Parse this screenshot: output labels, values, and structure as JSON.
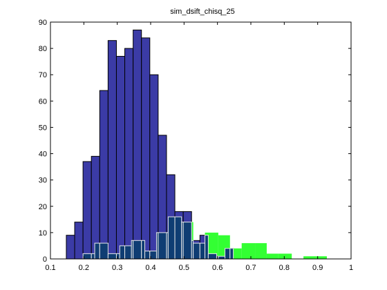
{
  "chart_data": {
    "type": "bar",
    "title": "sim_dsift_chisq_25",
    "xlabel": "",
    "ylabel": "",
    "xlim": [
      0.1,
      1.0
    ],
    "ylim": [
      0,
      90
    ],
    "x_ticks": [
      "0.1",
      "0.2",
      "0.3",
      "0.4",
      "0.5",
      "0.6",
      "0.7",
      "0.8",
      "0.9",
      "1"
    ],
    "y_ticks": [
      "0",
      "10",
      "20",
      "30",
      "40",
      "50",
      "60",
      "70",
      "80",
      "90"
    ],
    "grid": false,
    "bin_width": 0.025,
    "colors": {
      "series_a_fill": "#3b3ba6",
      "series_a_edge": "#000000",
      "series_b_fill": "#33ff33",
      "overlap_fill": "#0f3d73",
      "overlap_edge": "#e8e8e8"
    },
    "series": [
      {
        "bins": [
          [
            0.1475,
            0.1725,
            9
          ],
          [
            0.1725,
            0.1975,
            14
          ],
          [
            0.1975,
            0.2225,
            37
          ],
          [
            0.2225,
            0.2475,
            39
          ],
          [
            0.2475,
            0.2725,
            64
          ],
          [
            0.2725,
            0.2975,
            83
          ],
          [
            0.2975,
            0.3225,
            77
          ],
          [
            0.3225,
            0.3475,
            80
          ],
          [
            0.3475,
            0.3725,
            87
          ],
          [
            0.3725,
            0.3975,
            84
          ],
          [
            0.3975,
            0.4225,
            70
          ],
          [
            0.4225,
            0.4475,
            47
          ],
          [
            0.4475,
            0.4725,
            32
          ],
          [
            0.4725,
            0.4975,
            18
          ],
          [
            0.4975,
            0.5225,
            18
          ],
          [
            0.5225,
            0.5475,
            7
          ],
          [
            0.5475,
            0.5725,
            9
          ],
          [
            0.5725,
            0.5975,
            2
          ],
          [
            0.5975,
            0.6225,
            1
          ],
          [
            0.6225,
            0.6475,
            4
          ]
        ]
      },
      {
        "bins": [
          [
            0.1975,
            0.2325,
            2
          ],
          [
            0.2325,
            0.2725,
            6
          ],
          [
            0.2725,
            0.3075,
            2
          ],
          [
            0.3075,
            0.3425,
            5
          ],
          [
            0.3425,
            0.3825,
            7
          ],
          [
            0.3825,
            0.4175,
            3
          ],
          [
            0.4175,
            0.4525,
            10
          ],
          [
            0.4525,
            0.4925,
            16
          ],
          [
            0.4925,
            0.5275,
            14
          ],
          [
            0.5275,
            0.5625,
            6
          ],
          [
            0.5625,
            0.6025,
            10
          ],
          [
            0.6025,
            0.6375,
            9
          ],
          [
            0.6375,
            0.6725,
            4
          ],
          [
            0.6725,
            0.7125,
            6
          ],
          [
            0.7125,
            0.7475,
            6
          ],
          [
            0.7475,
            0.7825,
            2
          ],
          [
            0.7825,
            0.8225,
            2
          ],
          [
            0.8225,
            0.8575,
            0
          ],
          [
            0.8575,
            0.8925,
            1
          ],
          [
            0.8925,
            0.9275,
            1
          ]
        ]
      }
    ]
  }
}
